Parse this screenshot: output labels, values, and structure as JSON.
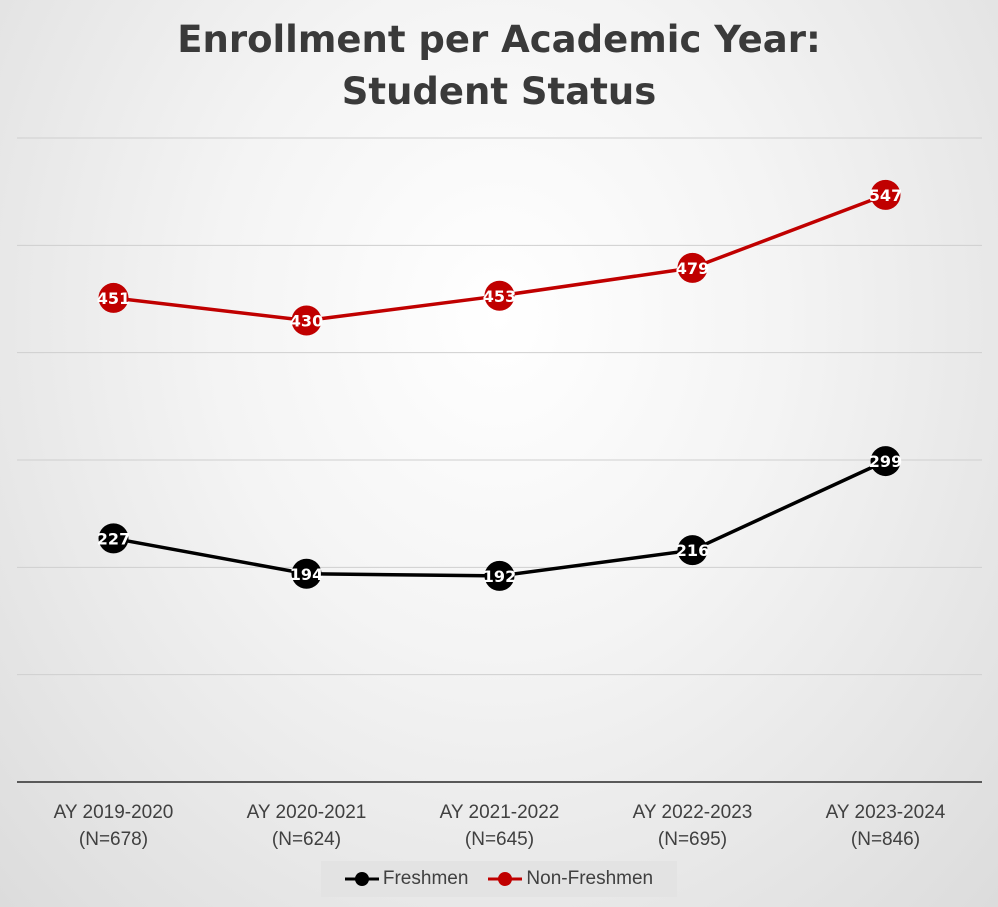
{
  "chart_data": {
    "type": "line",
    "title": [
      "Enrollment per Academic Year:",
      "Student Status"
    ],
    "categories": [
      [
        "AY 2019-2020",
        "(N=678)"
      ],
      [
        "AY 2020-2021",
        "(N=624)"
      ],
      [
        "AY 2021-2022",
        "(N=645)"
      ],
      [
        "AY 2022-2023",
        "(N=695)"
      ],
      [
        "AY 2023-2024",
        "(N=846)"
      ]
    ],
    "series": [
      {
        "name": "Freshmen",
        "values": [
          227,
          194,
          192,
          216,
          299
        ],
        "color": "#000000"
      },
      {
        "name": "Non-Freshmen",
        "values": [
          451,
          430,
          453,
          479,
          547
        ],
        "color": "#c00000"
      }
    ],
    "ylim": [
      0,
      600
    ],
    "ytick_step": 100,
    "grid": true,
    "legend": "bottom"
  }
}
